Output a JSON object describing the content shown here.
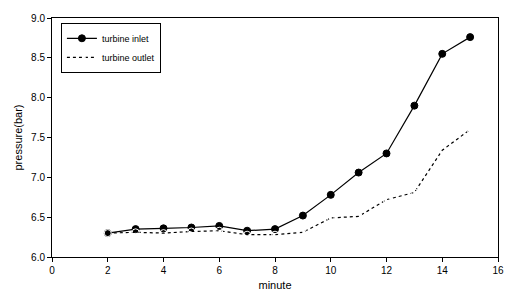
{
  "chart_data": {
    "type": "line",
    "x_label": "minute",
    "y_label": "pressure(bar)",
    "series": [
      {
        "name": "turbine inlet",
        "color": "#000000",
        "marker": "circle",
        "line_style": "solid",
        "x": [
          2,
          3,
          4,
          5,
          6,
          7,
          8,
          9,
          10,
          11,
          12,
          13,
          14,
          15
        ],
        "values": [
          6.3,
          6.35,
          6.36,
          6.37,
          6.39,
          6.33,
          6.35,
          6.52,
          6.78,
          7.06,
          7.3,
          7.9,
          8.55,
          8.76
        ]
      },
      {
        "name": "turbine outlet",
        "color": "#000000",
        "marker": "circle-open",
        "line_style": "dotted",
        "x": [
          2,
          3,
          4,
          5,
          6,
          7,
          8,
          9,
          10,
          11,
          12,
          13,
          14,
          15
        ],
        "values": [
          6.3,
          6.31,
          6.3,
          6.32,
          6.33,
          6.28,
          6.28,
          6.31,
          6.49,
          6.51,
          6.72,
          6.81,
          7.34,
          7.6
        ]
      }
    ],
    "xlim": [
      0,
      16
    ],
    "xticks": [
      0,
      2,
      4,
      6,
      8,
      10,
      12,
      14,
      16
    ],
    "ylim": [
      6,
      9
    ],
    "yticks": [
      {
        "value": 6,
        "label": "6.0"
      },
      6.5,
      {
        "value": 7,
        "label": "7.0"
      },
      7.5,
      {
        "value": 8,
        "label": "8.0"
      },
      8.5,
      {
        "value": 9,
        "label": "9.0"
      }
    ],
    "grid": false,
    "legend": "upper left"
  }
}
